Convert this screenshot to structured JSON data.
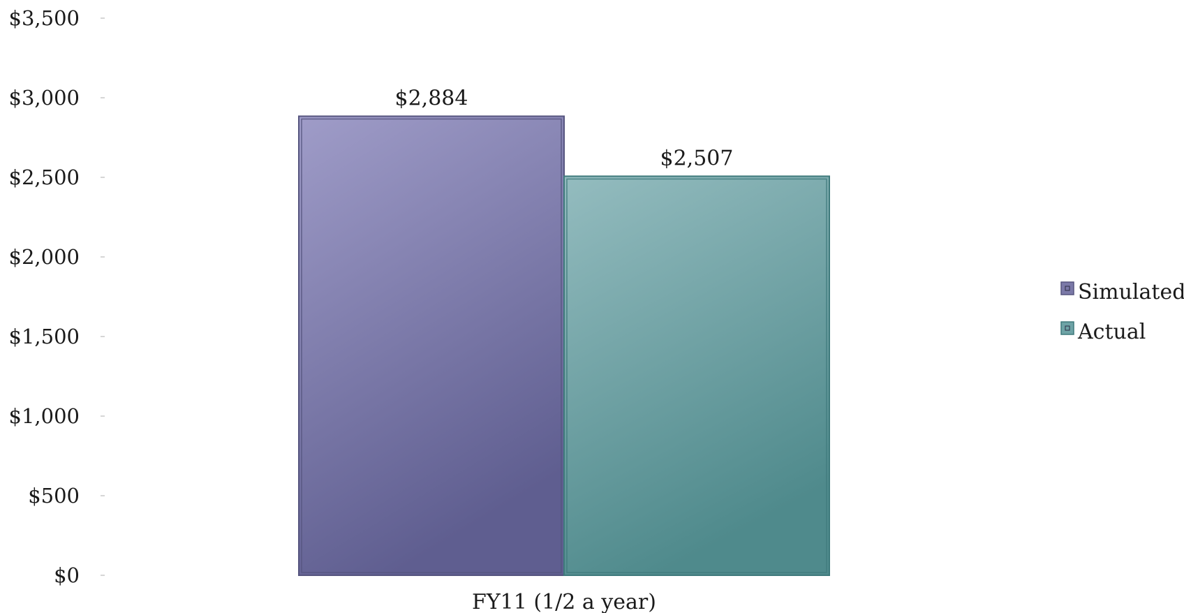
{
  "chart_data": {
    "type": "bar",
    "categories": [
      "FY11 (1/2 a year)"
    ],
    "series": [
      {
        "name": "Simulated",
        "values": [
          2884
        ],
        "color": "#7b79a8",
        "data_label": "$2,884"
      },
      {
        "name": "Actual",
        "values": [
          2507
        ],
        "color": "#6ea3a6",
        "data_label": "$2,507"
      }
    ],
    "title": "",
    "xlabel": "",
    "ylabel": "",
    "ylim": [
      0,
      3500
    ],
    "yticks": [
      0,
      500,
      1000,
      1500,
      2000,
      2500,
      3000,
      3500
    ],
    "ytick_labels": [
      "$0",
      "$500",
      "$1,000",
      "$1,500",
      "$2,000",
      "$2,500",
      "$3,000",
      "$3,500"
    ],
    "grid": false,
    "legend_position": "right"
  }
}
